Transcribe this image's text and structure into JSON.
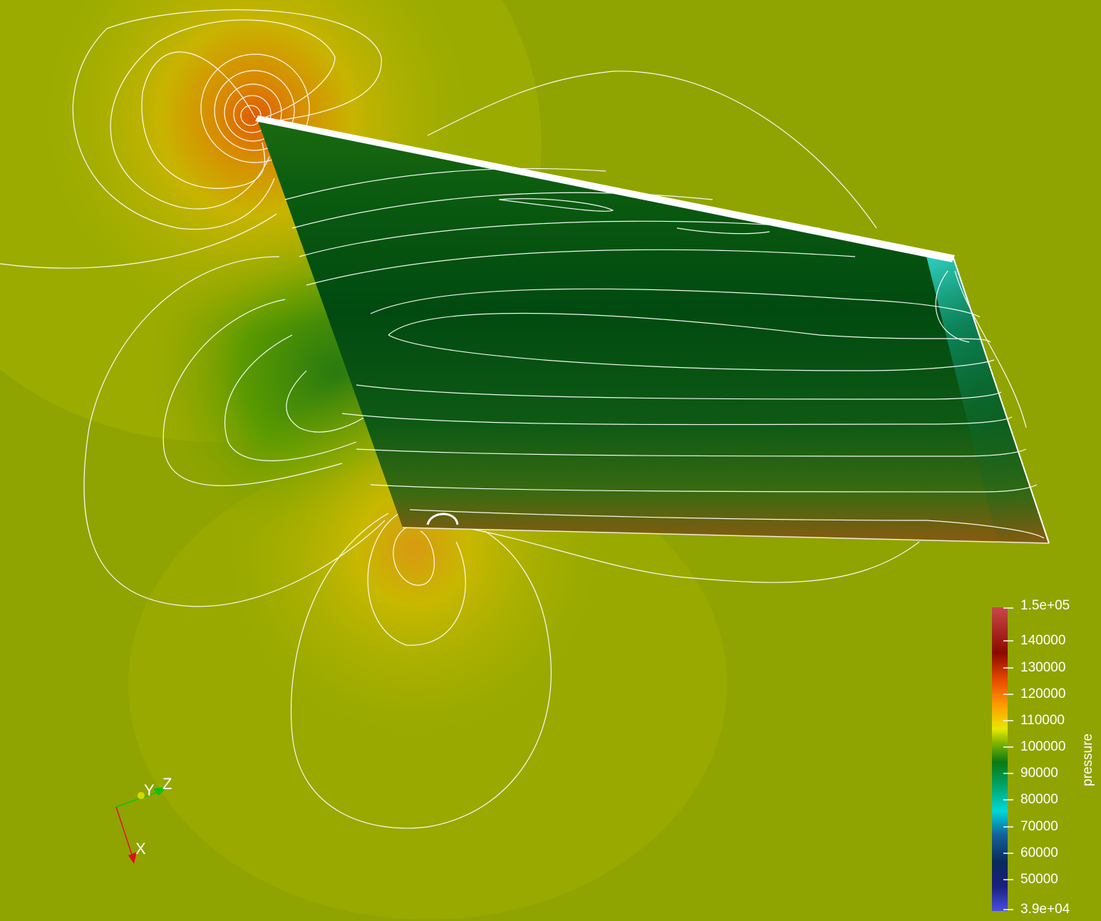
{
  "colorbar": {
    "title": "pressure",
    "max_label": "1.5e+05",
    "min_label": "3.9e+04",
    "range": [
      39000,
      150000
    ],
    "ticks": [
      {
        "value": 140000,
        "label": "140000"
      },
      {
        "value": 130000,
        "label": "130000"
      },
      {
        "value": 120000,
        "label": "120000"
      },
      {
        "value": 110000,
        "label": "110000"
      },
      {
        "value": 100000,
        "label": "100000"
      },
      {
        "value": 90000,
        "label": "90000"
      },
      {
        "value": 80000,
        "label": "80000"
      },
      {
        "value": 70000,
        "label": "70000"
      },
      {
        "value": 60000,
        "label": "60000"
      },
      {
        "value": 50000,
        "label": "50000"
      }
    ],
    "colors": [
      "#4a4ee0",
      "#1a1f80",
      "#0a2a5a",
      "#14609a",
      "#00d8d8",
      "#00a060",
      "#0a7a14",
      "#7ab000",
      "#e8e800",
      "#ff9a00",
      "#e84a00",
      "#8a0a00",
      "#c84848"
    ]
  },
  "axes": {
    "x_label": "X",
    "y_label": "Y",
    "z_label": "Z",
    "x_color": "#e01010",
    "y_color": "#d8d800",
    "z_color": "#10c010"
  },
  "scene": {
    "background_color": "#8fa400",
    "wing_color": "#0a4a14",
    "contour_color": "#ffffff"
  }
}
